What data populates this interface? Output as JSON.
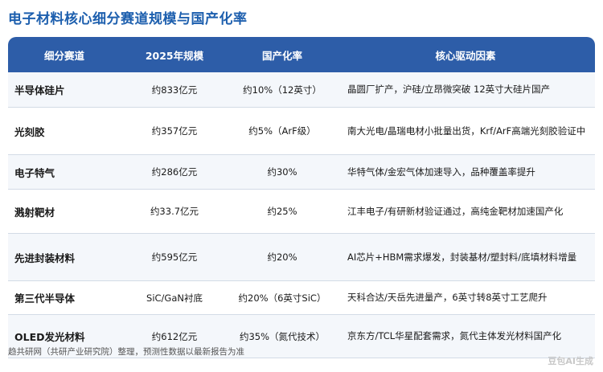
{
  "title": "电子材料核心细分赛道规模与国产化率",
  "table": {
    "headers": [
      "细分赛道",
      "2025年规模",
      "国产化率",
      "核心驱动因素"
    ],
    "rows": [
      {
        "segment": "半导体硅片",
        "scale": "约833亿元",
        "rate": "约10%（12英寸）",
        "driver": "晶圆厂扩产，沪硅/立昂微突破 12英寸大硅片国产"
      },
      {
        "segment": "光刻胶",
        "scale": "约357亿元",
        "rate": "约5%（ArF级）",
        "driver": "南大光电/晶瑞电材小批量出货，Krf/ArF高端光刻胶验证中"
      },
      {
        "segment": "电子特气",
        "scale": "约286亿元",
        "rate": "约30%",
        "driver": "华特气体/金宏气体加速导入，品种覆盖率提升"
      },
      {
        "segment": "溅射靶材",
        "scale": "约33.7亿元",
        "rate": "约25%",
        "driver": "江丰电子/有研新材验证通过，高纯金靶材加速国产化"
      },
      {
        "segment": "先进封装材料",
        "scale": "约595亿元",
        "rate": "约20%",
        "driver": "AI芯片+HBM需求爆发，封装基材/塑封料/底填材料增量"
      },
      {
        "segment": "第三代半导体",
        "scale": "SiC/GaN衬底",
        "rate": "约20%（6英寸SiC）",
        "driver": "天科合达/天岳先进量产，6英寸转8英寸工艺爬升"
      },
      {
        "segment": "OLED发光材料",
        "scale": "约612亿元",
        "rate": "约35%（氮代技术）",
        "driver": "京东方/TCL华星配套需求，氮代主体发光材料国产化"
      }
    ]
  },
  "footer": "趋共研网（共研产业研究院）整理，预测性数据以最新报告为准",
  "watermark": "豆包AI生成",
  "colors": {
    "title": "#1d5fae",
    "header_bg": "#2d5da8",
    "row_alt": "#f4f7fb"
  }
}
